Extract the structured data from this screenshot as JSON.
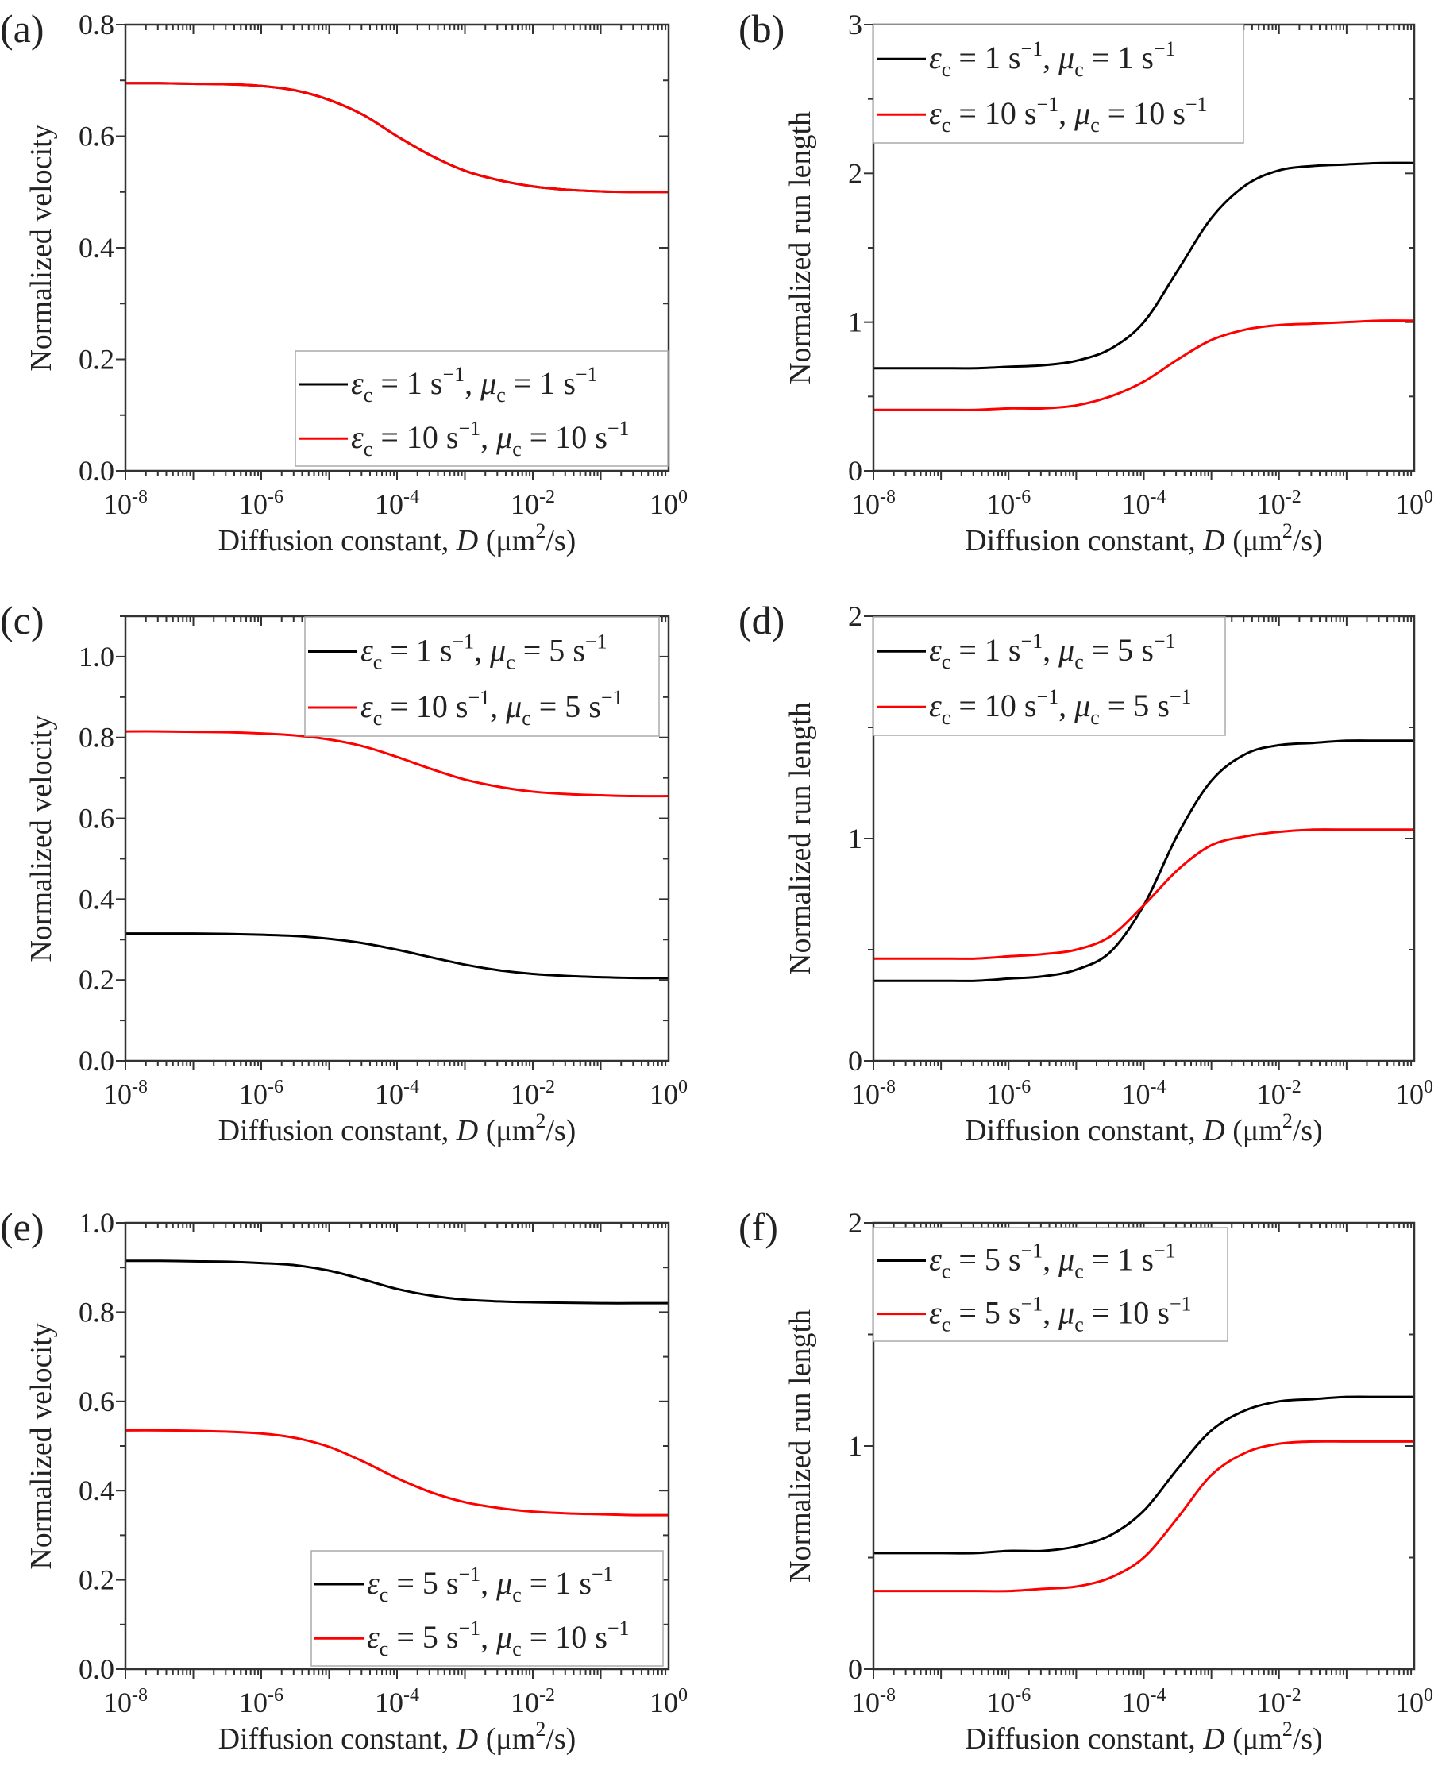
{
  "chart_data": [
    {
      "panel": "(a)",
      "type": "line",
      "xlabel": "Diffusion constant, D (μm2/s)",
      "ylabel": "Normalized velocity",
      "xscale": "log",
      "xlim": [
        1e-08,
        1
      ],
      "ylim": [
        0,
        0.8
      ],
      "xticks": [
        "10^-8",
        "10^-6",
        "10^-4",
        "10^-2",
        "10^0"
      ],
      "yticks": [
        0,
        0.2,
        0.4,
        0.6,
        0.8
      ],
      "ytick_labels": [
        "0.0",
        "0.2",
        "0.4",
        "0.6",
        "0.8"
      ],
      "legend_position": "bottom-right",
      "x": [
        1e-08,
        3.2e-08,
        1e-07,
        3.2e-07,
        1e-06,
        3.2e-06,
        1e-05,
        3.2e-05,
        0.0001,
        0.00032,
        0.001,
        0.0032,
        0.01,
        0.032,
        0.1,
        0.32,
        1
      ],
      "series": [
        {
          "name": "εc = 1 s−1, μc = 1 s−1",
          "color": "#000000",
          "values": [
            0.695,
            0.695,
            0.694,
            0.693,
            0.69,
            0.682,
            0.665,
            0.638,
            0.6,
            0.565,
            0.538,
            0.521,
            0.51,
            0.504,
            0.501,
            0.5,
            0.5
          ]
        },
        {
          "name": "εc = 10 s−1, μc = 10 s−1",
          "color": "#ff0000",
          "values": [
            0.695,
            0.695,
            0.694,
            0.693,
            0.69,
            0.682,
            0.665,
            0.638,
            0.6,
            0.565,
            0.538,
            0.521,
            0.51,
            0.504,
            0.501,
            0.5,
            0.5
          ]
        }
      ]
    },
    {
      "panel": "(b)",
      "type": "line",
      "xlabel": "Diffusion constant, D (μm2/s)",
      "ylabel": "Normalized run length",
      "xscale": "log",
      "xlim": [
        1e-08,
        1
      ],
      "ylim": [
        0,
        3
      ],
      "xticks": [
        "10^-8",
        "10^-6",
        "10^-4",
        "10^-2",
        "10^0"
      ],
      "yticks": [
        0,
        1,
        2,
        3
      ],
      "ytick_labels": [
        "0",
        "1",
        "2",
        "3"
      ],
      "legend_position": "top-left",
      "x": [
        1e-08,
        3.2e-08,
        1e-07,
        3.2e-07,
        1e-06,
        3.2e-06,
        1e-05,
        3.2e-05,
        0.0001,
        0.00032,
        0.001,
        0.0032,
        0.01,
        0.032,
        0.1,
        0.32,
        1
      ],
      "series": [
        {
          "name": "εc = 1 s−1, μc = 1 s−1",
          "color": "#000000",
          "values": [
            0.69,
            0.69,
            0.69,
            0.69,
            0.7,
            0.71,
            0.74,
            0.82,
            1.0,
            1.35,
            1.7,
            1.92,
            2.02,
            2.05,
            2.06,
            2.07,
            2.07
          ]
        },
        {
          "name": "εc = 10 s−1, μc = 10 s−1",
          "color": "#ff0000",
          "values": [
            0.41,
            0.41,
            0.41,
            0.41,
            0.42,
            0.42,
            0.44,
            0.5,
            0.6,
            0.75,
            0.88,
            0.95,
            0.98,
            0.99,
            1.0,
            1.01,
            1.01
          ]
        }
      ]
    },
    {
      "panel": "(c)",
      "type": "line",
      "xlabel": "Diffusion constant, D (μm2/s)",
      "ylabel": "Normalized velocity",
      "xscale": "log",
      "xlim": [
        1e-08,
        1
      ],
      "ylim": [
        0,
        1.1
      ],
      "xticks": [
        "10^-8",
        "10^-6",
        "10^-4",
        "10^-2",
        "10^0"
      ],
      "yticks": [
        0,
        0.2,
        0.4,
        0.6,
        0.8,
        1.0
      ],
      "ytick_labels": [
        "0.0",
        "0.2",
        "0.4",
        "0.6",
        "0.8",
        "1.0"
      ],
      "legend_position": "top-right",
      "x": [
        1e-08,
        3.2e-08,
        1e-07,
        3.2e-07,
        1e-06,
        3.2e-06,
        1e-05,
        3.2e-05,
        0.0001,
        0.00032,
        0.001,
        0.0032,
        0.01,
        0.032,
        0.1,
        0.32,
        1
      ],
      "series": [
        {
          "name": "εc = 1 s−1, μc = 5 s−1",
          "color": "#000000",
          "values": [
            0.315,
            0.315,
            0.315,
            0.314,
            0.312,
            0.309,
            0.302,
            0.291,
            0.275,
            0.256,
            0.238,
            0.224,
            0.215,
            0.21,
            0.207,
            0.205,
            0.205
          ]
        },
        {
          "name": "εc = 10 s−1, μc = 5 s−1",
          "color": "#ff0000",
          "values": [
            0.815,
            0.815,
            0.814,
            0.813,
            0.81,
            0.805,
            0.795,
            0.778,
            0.752,
            0.722,
            0.696,
            0.678,
            0.666,
            0.66,
            0.657,
            0.655,
            0.655
          ]
        }
      ]
    },
    {
      "panel": "(d)",
      "type": "line",
      "xlabel": "Diffusion constant, D (μm2/s)",
      "ylabel": "Normalized run length",
      "xscale": "log",
      "xlim": [
        1e-08,
        1
      ],
      "ylim": [
        0,
        2
      ],
      "xticks": [
        "10^-8",
        "10^-6",
        "10^-4",
        "10^-2",
        "10^0"
      ],
      "yticks": [
        0,
        1,
        2
      ],
      "ytick_labels": [
        "0",
        "1",
        "2"
      ],
      "legend_position": "top-left",
      "x": [
        1e-08,
        3.2e-08,
        1e-07,
        3.2e-07,
        1e-06,
        3.2e-06,
        1e-05,
        3.2e-05,
        0.0001,
        0.00032,
        0.001,
        0.0032,
        0.01,
        0.032,
        0.1,
        0.32,
        1
      ],
      "series": [
        {
          "name": "εc = 1 s−1, μc = 5 s−1",
          "color": "#000000",
          "values": [
            0.36,
            0.36,
            0.36,
            0.36,
            0.37,
            0.38,
            0.41,
            0.49,
            0.7,
            1.02,
            1.26,
            1.38,
            1.42,
            1.43,
            1.44,
            1.44,
            1.44
          ]
        },
        {
          "name": "εc = 10 s−1, μc = 5 s−1",
          "color": "#ff0000",
          "values": [
            0.46,
            0.46,
            0.46,
            0.46,
            0.47,
            0.48,
            0.5,
            0.56,
            0.7,
            0.86,
            0.97,
            1.01,
            1.03,
            1.04,
            1.04,
            1.04,
            1.04
          ]
        }
      ]
    },
    {
      "panel": "(e)",
      "type": "line",
      "xlabel": "Diffusion constant, D (μm2/s)",
      "ylabel": "Normalized velocity",
      "xscale": "log",
      "xlim": [
        1e-08,
        1
      ],
      "ylim": [
        0,
        1.0
      ],
      "xticks": [
        "10^-8",
        "10^-6",
        "10^-4",
        "10^-2",
        "10^0"
      ],
      "yticks": [
        0,
        0.2,
        0.4,
        0.6,
        0.8,
        1.0
      ],
      "ytick_labels": [
        "0.0",
        "0.2",
        "0.4",
        "0.6",
        "0.8",
        "1.0"
      ],
      "legend_position": "bottom-right",
      "x": [
        1e-08,
        3.2e-08,
        1e-07,
        3.2e-07,
        1e-06,
        3.2e-06,
        1e-05,
        3.2e-05,
        0.0001,
        0.00032,
        0.001,
        0.0032,
        0.01,
        0.032,
        0.1,
        0.32,
        1
      ],
      "series": [
        {
          "name": "εc = 5 s−1, μc = 1 s−1",
          "color": "#000000",
          "values": [
            0.915,
            0.915,
            0.914,
            0.913,
            0.91,
            0.905,
            0.893,
            0.873,
            0.852,
            0.837,
            0.828,
            0.824,
            0.822,
            0.821,
            0.82,
            0.82,
            0.82
          ]
        },
        {
          "name": "εc = 5 s−1, μc = 10 s−1",
          "color": "#ff0000",
          "values": [
            0.535,
            0.535,
            0.534,
            0.532,
            0.528,
            0.518,
            0.498,
            0.465,
            0.428,
            0.396,
            0.374,
            0.361,
            0.353,
            0.349,
            0.347,
            0.345,
            0.345
          ]
        }
      ]
    },
    {
      "panel": "(f)",
      "type": "line",
      "xlabel": "Diffusion constant, D (μm2/s)",
      "ylabel": "Normalized run length",
      "xscale": "log",
      "xlim": [
        1e-08,
        1
      ],
      "ylim": [
        0,
        2
      ],
      "xticks": [
        "10^-8",
        "10^-6",
        "10^-4",
        "10^-2",
        "10^0"
      ],
      "yticks": [
        0,
        1,
        2
      ],
      "ytick_labels": [
        "0",
        "1",
        "2"
      ],
      "legend_position": "top-left",
      "x": [
        1e-08,
        3.2e-08,
        1e-07,
        3.2e-07,
        1e-06,
        3.2e-06,
        1e-05,
        3.2e-05,
        0.0001,
        0.00032,
        0.001,
        0.0032,
        0.01,
        0.032,
        0.1,
        0.32,
        1
      ],
      "series": [
        {
          "name": "εc = 5 s−1, μc = 1 s−1",
          "color": "#000000",
          "values": [
            0.52,
            0.52,
            0.52,
            0.52,
            0.53,
            0.53,
            0.55,
            0.6,
            0.71,
            0.9,
            1.07,
            1.16,
            1.2,
            1.21,
            1.22,
            1.22,
            1.22
          ]
        },
        {
          "name": "εc = 5 s−1, μc = 10 s−1",
          "color": "#ff0000",
          "values": [
            0.35,
            0.35,
            0.35,
            0.35,
            0.35,
            0.36,
            0.37,
            0.41,
            0.5,
            0.68,
            0.87,
            0.97,
            1.01,
            1.02,
            1.02,
            1.02,
            1.02
          ]
        }
      ]
    }
  ]
}
